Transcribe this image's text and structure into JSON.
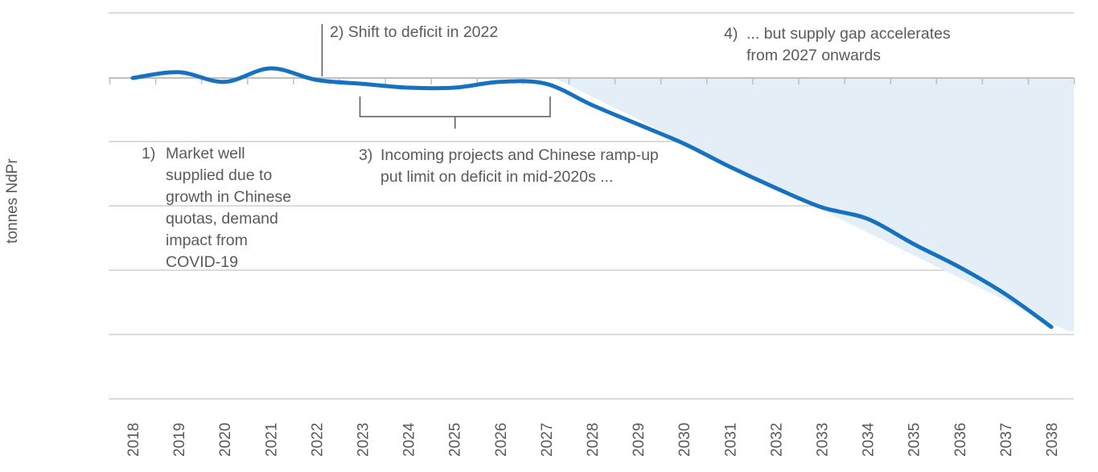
{
  "chart_data": {
    "type": "line",
    "title": "",
    "xlabel": "",
    "ylabel": "tonnes NdPr",
    "x": [
      "2018",
      "2019",
      "2020",
      "2021",
      "2022",
      "2023",
      "2024",
      "2025",
      "2026",
      "2027",
      "2028",
      "2029",
      "2030",
      "2031",
      "2032",
      "2033",
      "2034",
      "2035",
      "2036",
      "2037",
      "2038"
    ],
    "series": [
      {
        "values": [
          0.0,
          0.15,
          -0.1,
          0.25,
          -0.05,
          -0.15,
          -0.25,
          -0.25,
          -0.1,
          -0.15,
          -0.7,
          -1.2,
          -1.7,
          -2.3,
          -2.85,
          -3.35,
          -3.65,
          -4.3,
          -4.9,
          -5.6,
          -6.45
        ]
      }
    ],
    "ylim": [
      -6.5,
      1.0
    ],
    "grid": true,
    "shaded_area": "supply gap from 2027 onwards",
    "annotations": [
      {
        "id": "1",
        "num": "1)",
        "lines": [
          "Market well",
          "supplied due to",
          "growth in Chinese",
          "quotas, demand",
          "impact from",
          "COVID-19"
        ]
      },
      {
        "id": "2",
        "num": "2)",
        "lines": [
          "Shift to deficit in 2022"
        ]
      },
      {
        "id": "3",
        "num": "3)",
        "lines": [
          "Incoming projects and Chinese ramp-up",
          "put limit on deficit in mid-2020s ..."
        ]
      },
      {
        "id": "4",
        "num": "4)",
        "lines": [
          "... but supply gap accelerates",
          "from 2027 onwards"
        ]
      }
    ]
  }
}
